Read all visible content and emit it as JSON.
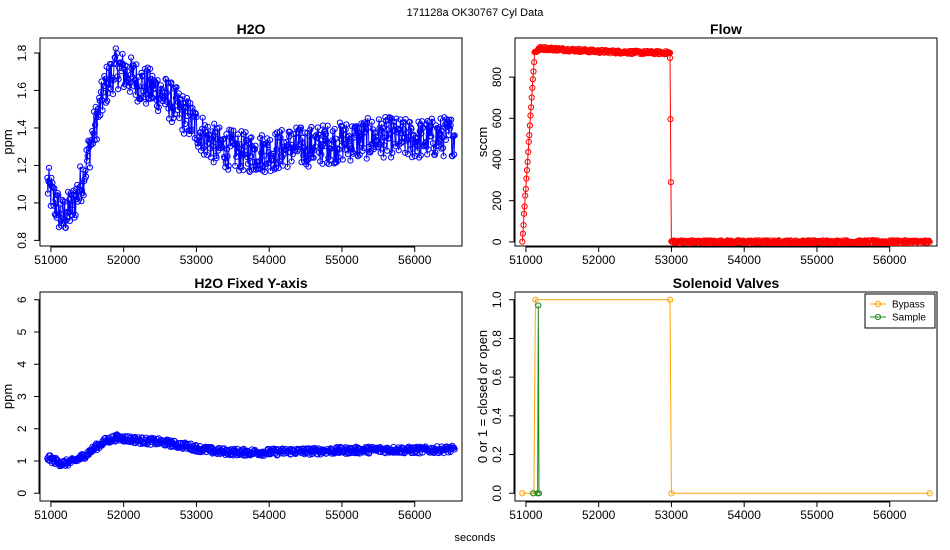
{
  "page_title": "171128a   OK30767   Cyl Data",
  "x_label": "seconds",
  "chart_data": [
    {
      "id": "h2o",
      "type": "line",
      "title": "H2O",
      "ylabel": "ppm",
      "xlim": [
        50850,
        56650
      ],
      "ylim": [
        0.77,
        1.88
      ],
      "x_ticks": [
        51000,
        52000,
        53000,
        54000,
        55000,
        56000
      ],
      "y_ticks": [
        0.8,
        1.0,
        1.2,
        1.4,
        1.6,
        1.8
      ],
      "y_tick_labels": [
        "0.8",
        "1.0",
        "1.2",
        "1.4",
        "1.6",
        "1.8"
      ],
      "series": [
        {
          "color": "#0000ff",
          "marker": "open-circle",
          "x": [
            50950,
            51150,
            51300,
            51450,
            51600,
            51750,
            51900,
            52000,
            52150,
            52300,
            52450,
            52600,
            52750,
            52900,
            53000,
            53150,
            53300,
            53500,
            53700,
            53900,
            54100,
            54300,
            54500,
            54700,
            54900,
            55100,
            55300,
            55500,
            55700,
            55900,
            56100,
            56300,
            56550
          ],
          "y": [
            1.1,
            0.92,
            0.98,
            1.15,
            1.4,
            1.62,
            1.72,
            1.7,
            1.66,
            1.62,
            1.6,
            1.56,
            1.5,
            1.45,
            1.4,
            1.34,
            1.3,
            1.28,
            1.27,
            1.27,
            1.28,
            1.3,
            1.3,
            1.31,
            1.32,
            1.33,
            1.34,
            1.35,
            1.35,
            1.34,
            1.34,
            1.35,
            1.36
          ],
          "noise": 0.11
        }
      ]
    },
    {
      "id": "flow",
      "type": "line",
      "title": "Flow",
      "ylabel": "sccm",
      "xlim": [
        50850,
        56650
      ],
      "ylim": [
        -20,
        990
      ],
      "x_ticks": [
        51000,
        52000,
        53000,
        54000,
        55000,
        56000
      ],
      "y_ticks": [
        0,
        200,
        400,
        600,
        800
      ],
      "y_tick_labels": [
        "0",
        "200",
        "400",
        "600",
        "800"
      ],
      "series": [
        {
          "color": "#ff0000",
          "marker": "open-circle",
          "x": [
            50950,
            51120,
            51200,
            52000,
            52500,
            52980,
            52980,
            53000,
            56550
          ],
          "y": [
            0,
            920,
            940,
            925,
            920,
            918,
            890,
            0,
            0
          ],
          "noise": 8
        }
      ]
    },
    {
      "id": "h2o_fixed",
      "type": "line",
      "title": "H2O Fixed Y-axis",
      "ylabel": "ppm",
      "xlim": [
        50850,
        56650
      ],
      "ylim": [
        -0.24,
        6.24
      ],
      "x_ticks": [
        51000,
        52000,
        53000,
        54000,
        55000,
        56000
      ],
      "y_ticks": [
        0,
        1,
        2,
        3,
        4,
        5,
        6
      ],
      "y_tick_labels": [
        "0",
        "1",
        "2",
        "3",
        "4",
        "5",
        "6"
      ],
      "series": [
        {
          "color": "#0000ff",
          "marker": "open-circle",
          "x": [
            50950,
            51150,
            51300,
            51450,
            51600,
            51750,
            51900,
            52000,
            52150,
            52300,
            52450,
            52600,
            52750,
            52900,
            53000,
            53150,
            53300,
            53500,
            53700,
            53900,
            54100,
            54300,
            54500,
            54700,
            54900,
            55100,
            55300,
            55500,
            55700,
            55900,
            56100,
            56300,
            56550
          ],
          "y": [
            1.1,
            0.92,
            0.98,
            1.15,
            1.4,
            1.62,
            1.72,
            1.7,
            1.66,
            1.62,
            1.6,
            1.56,
            1.5,
            1.45,
            1.4,
            1.34,
            1.3,
            1.28,
            1.27,
            1.27,
            1.28,
            1.3,
            1.3,
            1.31,
            1.32,
            1.33,
            1.34,
            1.35,
            1.35,
            1.34,
            1.34,
            1.35,
            1.36
          ],
          "noise": 0.11
        }
      ]
    },
    {
      "id": "solenoid",
      "type": "line",
      "title": "Solenoid Valves",
      "ylabel": "0 or 1 = closed or open",
      "xlim": [
        50850,
        56650
      ],
      "ylim": [
        -0.04,
        1.04
      ],
      "x_ticks": [
        51000,
        52000,
        53000,
        54000,
        55000,
        56000
      ],
      "y_ticks": [
        0.0,
        0.2,
        0.4,
        0.6,
        0.8,
        1.0
      ],
      "y_tick_labels": [
        "0.0",
        "0.2",
        "0.4",
        "0.6",
        "0.8",
        "1.0"
      ],
      "legend": "top-right",
      "series": [
        {
          "name": "Bypass",
          "color": "#ffa500",
          "marker": "open-circle",
          "x": [
            50950,
            51110,
            51130,
            52980,
            53000,
            56550
          ],
          "y": [
            0,
            0,
            1,
            1,
            0,
            0
          ]
        },
        {
          "name": "Sample",
          "color": "#228b22",
          "marker": "open-circle",
          "x": [
            51100,
            51160,
            51170,
            51180
          ],
          "y": [
            0,
            0,
            0.97,
            0
          ]
        }
      ]
    }
  ]
}
